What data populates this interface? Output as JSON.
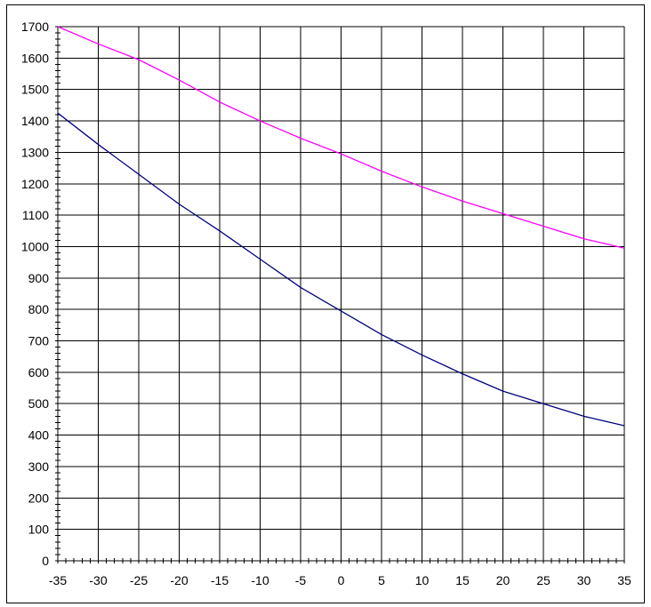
{
  "chart_data": {
    "type": "line",
    "title": "",
    "xlabel": "",
    "ylabel": "",
    "xlim": [
      -35,
      35
    ],
    "ylim": [
      0,
      1700
    ],
    "grid": true,
    "x_ticks": [
      -35,
      -30,
      -25,
      -20,
      -15,
      -10,
      -5,
      0,
      5,
      10,
      15,
      20,
      25,
      30,
      35
    ],
    "y_ticks": [
      0,
      100,
      200,
      300,
      400,
      500,
      600,
      700,
      800,
      900,
      1000,
      1100,
      1200,
      1300,
      1400,
      1500,
      1600,
      1700
    ],
    "x_tick_labels": [
      "-35",
      "-30",
      "-25",
      "-20",
      "-15",
      "-10",
      "-5",
      "0",
      "5",
      "10",
      "15",
      "20",
      "25",
      "30",
      "35"
    ],
    "y_tick_labels": [
      "0",
      "100",
      "200",
      "300",
      "400",
      "500",
      "600",
      "700",
      "800",
      "900",
      "1000",
      "1100",
      "1200",
      "1300",
      "1400",
      "1500",
      "1600",
      "1700"
    ],
    "series": [
      {
        "color": "#ff00ff",
        "x": [
          -35,
          -30,
          -25,
          -20,
          -15,
          -10,
          -5,
          0,
          5,
          10,
          15,
          20,
          25,
          30,
          35
        ],
        "y": [
          1700,
          1645,
          1595,
          1530,
          1460,
          1400,
          1345,
          1295,
          1240,
          1190,
          1145,
          1105,
          1065,
          1025,
          995
        ]
      },
      {
        "color": "#000080",
        "x": [
          -35,
          -30,
          -25,
          -20,
          -15,
          -10,
          -5,
          0,
          5,
          10,
          15,
          20,
          25,
          30,
          35
        ],
        "y": [
          1425,
          1325,
          1230,
          1135,
          1050,
          960,
          870,
          795,
          720,
          655,
          595,
          540,
          500,
          460,
          430
        ]
      }
    ]
  }
}
